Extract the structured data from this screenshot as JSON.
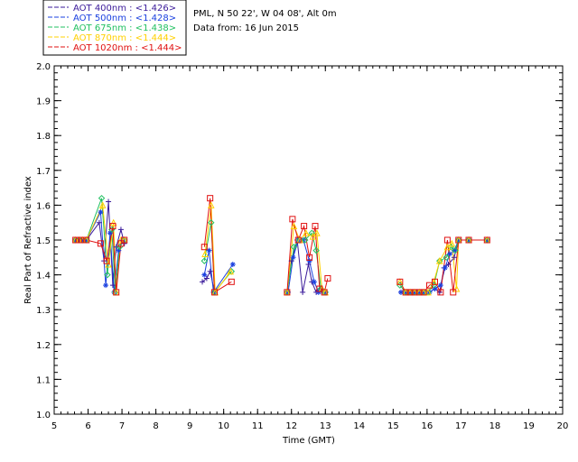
{
  "chart_data": {
    "type": "line",
    "site_line": "PML, N 50 22', W 04 08', Alt 0m",
    "date_line": "Data from: 16 Jun 2015",
    "xlabel": "Time (GMT)",
    "ylabel": "Real Part of Refractive index",
    "xlim": [
      5,
      20
    ],
    "ylim": [
      1.0,
      2.0
    ],
    "x_ticks": [
      "5",
      "6",
      "7",
      "8",
      "9",
      "10",
      "11",
      "12",
      "13",
      "14",
      "15",
      "16",
      "17",
      "18",
      "19",
      "20"
    ],
    "y_ticks": [
      "1.0",
      "1.1",
      "1.2",
      "1.3",
      "1.4",
      "1.5",
      "1.6",
      "1.7",
      "1.8",
      "1.9",
      "2.0"
    ],
    "legend_position": "top-left outside",
    "series": [
      {
        "name": "AOT  400nm : <1.426>",
        "color": "#3a1a9a",
        "marker": "plus",
        "x": [
          5.63,
          5.73,
          5.83,
          5.95,
          6.33,
          6.47,
          6.6,
          6.73,
          6.83,
          6.97,
          7.07,
          9.37,
          9.5,
          9.6,
          9.73,
          11.87,
          12.0,
          12.17,
          12.33,
          12.5,
          12.6,
          12.73,
          12.85,
          13.0,
          15.23,
          15.37,
          15.5,
          15.63,
          15.77,
          15.9,
          16.07,
          16.23,
          16.37,
          16.5,
          16.63,
          16.8,
          16.93,
          17.23,
          17.77
        ],
        "y": [
          1.5,
          1.5,
          1.5,
          1.5,
          1.55,
          1.44,
          1.61,
          1.37,
          1.48,
          1.53,
          1.49,
          1.38,
          1.39,
          1.41,
          1.35,
          1.35,
          1.44,
          1.5,
          1.35,
          1.43,
          1.38,
          1.35,
          1.36,
          1.35,
          1.35,
          1.35,
          1.35,
          1.35,
          1.35,
          1.35,
          1.35,
          1.36,
          1.35,
          1.42,
          1.43,
          1.45,
          1.5,
          1.5,
          1.5
        ]
      },
      {
        "name": "AOT  500nm : <1.428>",
        "color": "#1a40e0",
        "marker": "asterisk",
        "x": [
          5.63,
          5.73,
          5.83,
          5.95,
          6.37,
          6.52,
          6.65,
          6.77,
          6.9,
          7.03,
          9.43,
          9.57,
          9.7,
          10.27,
          11.9,
          12.05,
          12.2,
          12.35,
          12.53,
          12.67,
          12.8,
          12.95,
          15.23,
          15.37,
          15.5,
          15.63,
          15.77,
          15.9,
          16.07,
          16.23,
          16.4,
          16.53,
          16.67,
          16.8,
          16.93,
          17.23,
          17.77
        ],
        "y": [
          1.5,
          1.5,
          1.5,
          1.5,
          1.58,
          1.37,
          1.52,
          1.35,
          1.47,
          1.5,
          1.4,
          1.47,
          1.35,
          1.43,
          1.35,
          1.45,
          1.5,
          1.5,
          1.44,
          1.38,
          1.35,
          1.35,
          1.35,
          1.35,
          1.35,
          1.35,
          1.35,
          1.35,
          1.35,
          1.36,
          1.37,
          1.42,
          1.46,
          1.47,
          1.5,
          1.5,
          1.5
        ]
      },
      {
        "name": "AOT  675nm : <1.438>",
        "color": "#20c060",
        "marker": "diamond",
        "x": [
          5.63,
          5.73,
          5.83,
          5.95,
          6.4,
          6.57,
          6.7,
          6.8,
          6.93,
          7.07,
          9.43,
          9.63,
          9.73,
          10.23,
          11.87,
          12.07,
          12.23,
          12.4,
          12.6,
          12.73,
          12.87,
          13.0,
          15.2,
          15.37,
          15.5,
          15.63,
          15.77,
          15.9,
          16.03,
          16.2,
          16.37,
          16.57,
          16.7,
          16.83,
          16.93,
          17.23,
          17.77
        ],
        "y": [
          1.5,
          1.5,
          1.5,
          1.5,
          1.62,
          1.4,
          1.53,
          1.35,
          1.48,
          1.5,
          1.44,
          1.55,
          1.35,
          1.41,
          1.35,
          1.48,
          1.5,
          1.5,
          1.52,
          1.47,
          1.36,
          1.35,
          1.37,
          1.35,
          1.35,
          1.35,
          1.35,
          1.35,
          1.35,
          1.37,
          1.44,
          1.45,
          1.48,
          1.47,
          1.5,
          1.5,
          1.5
        ]
      },
      {
        "name": "AOT  870nm : <1.444>",
        "color": "#ffd000",
        "marker": "triangle",
        "x": [
          5.63,
          5.73,
          5.83,
          5.95,
          6.43,
          6.6,
          6.75,
          6.83,
          6.97,
          7.07,
          9.45,
          9.63,
          9.75,
          10.2,
          11.87,
          12.07,
          12.25,
          12.43,
          12.63,
          12.75,
          12.9,
          13.0,
          15.2,
          15.37,
          15.5,
          15.63,
          15.77,
          15.9,
          16.03,
          16.2,
          16.37,
          16.6,
          16.73,
          16.87,
          16.93,
          17.23,
          17.77
        ],
        "y": [
          1.5,
          1.5,
          1.5,
          1.5,
          1.6,
          1.43,
          1.55,
          1.35,
          1.5,
          1.5,
          1.46,
          1.6,
          1.35,
          1.41,
          1.35,
          1.54,
          1.5,
          1.52,
          1.51,
          1.52,
          1.36,
          1.35,
          1.38,
          1.35,
          1.35,
          1.35,
          1.35,
          1.35,
          1.35,
          1.38,
          1.44,
          1.48,
          1.49,
          1.36,
          1.5,
          1.5,
          1.5
        ]
      },
      {
        "name": "AOT 1020nm : <1.444>",
        "color": "#e01010",
        "marker": "square",
        "x": [
          5.63,
          5.73,
          5.83,
          5.95,
          6.37,
          6.55,
          6.73,
          6.83,
          6.97,
          7.07,
          9.43,
          9.6,
          9.73,
          10.23,
          11.87,
          12.03,
          12.2,
          12.37,
          12.53,
          12.7,
          12.83,
          12.97,
          13.07,
          15.2,
          15.37,
          15.5,
          15.63,
          15.77,
          15.9,
          16.07,
          16.23,
          16.4,
          16.6,
          16.77,
          16.93,
          17.23,
          17.77
        ],
        "y": [
          1.5,
          1.5,
          1.5,
          1.5,
          1.49,
          1.44,
          1.54,
          1.35,
          1.49,
          1.5,
          1.48,
          1.62,
          1.35,
          1.38,
          1.35,
          1.56,
          1.5,
          1.54,
          1.45,
          1.54,
          1.36,
          1.35,
          1.39,
          1.38,
          1.35,
          1.35,
          1.35,
          1.35,
          1.35,
          1.37,
          1.38,
          1.35,
          1.5,
          1.35,
          1.5,
          1.5,
          1.5
        ]
      }
    ]
  }
}
